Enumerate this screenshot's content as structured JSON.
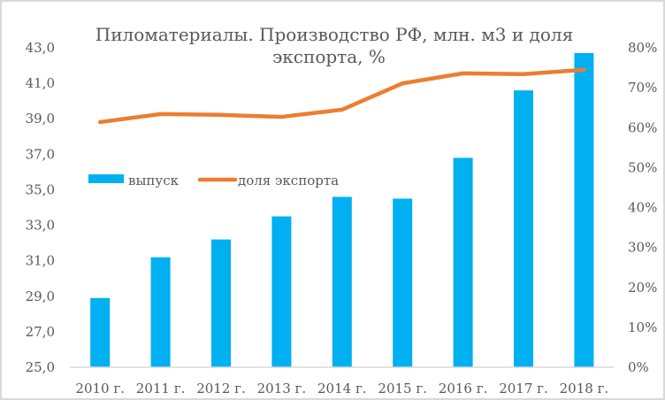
{
  "chart_data": {
    "type": "bar+line",
    "title_lines": [
      "Пиломатериалы. Производство РФ, млн. м3 и доля",
      "экспорта, %"
    ],
    "categories": [
      "2010 г.",
      "2011 г.",
      "2012 г.",
      "2013 г.",
      "2014 г.",
      "2015 г.",
      "2016 г.",
      "2017 г.",
      "2018 г."
    ],
    "series": [
      {
        "name": "выпуск",
        "type": "bar",
        "axis": "left",
        "color": "#00b0f0",
        "values": [
          28.9,
          31.2,
          32.2,
          33.5,
          34.6,
          34.5,
          36.8,
          40.6,
          42.7
        ]
      },
      {
        "name": "доля экспорта",
        "type": "line",
        "axis": "right",
        "color": "#ed7d31",
        "values": [
          61.4,
          63.4,
          63.2,
          62.7,
          64.5,
          71.1,
          73.6,
          73.4,
          74.5
        ]
      }
    ],
    "left_axis": {
      "min": 25,
      "max": 43,
      "ticks": [
        "25,0",
        "27,0",
        "29,0",
        "31,0",
        "33,0",
        "35,0",
        "37,0",
        "39,0",
        "41,0",
        "43,0"
      ]
    },
    "right_axis": {
      "min": 0,
      "max": 80,
      "ticks": [
        "0%",
        "10%",
        "20%",
        "30%",
        "40%",
        "50%",
        "60%",
        "70%",
        "80%"
      ]
    },
    "legend_position": "inside-middle-left",
    "grid": false
  }
}
